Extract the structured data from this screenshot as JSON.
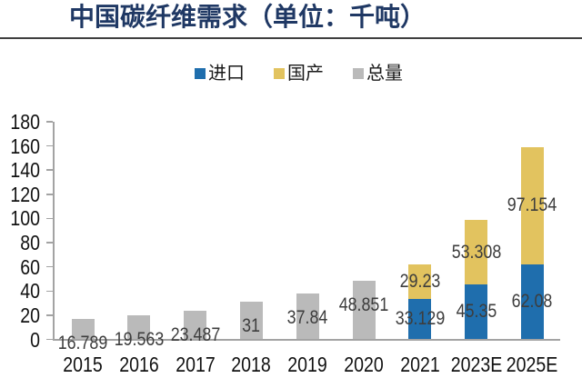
{
  "chart_data": {
    "type": "bar",
    "stacked": true,
    "title": "中国碳纤维需求（单位：千吨）",
    "categories": [
      "2015",
      "2016",
      "2017",
      "2018",
      "2019",
      "2020",
      "2021",
      "2023E",
      "2025E"
    ],
    "series": [
      {
        "name": "进口",
        "color": "#1f6ead",
        "values": [
          null,
          null,
          null,
          null,
          null,
          null,
          33.129,
          45.35,
          62.08
        ]
      },
      {
        "name": "国产",
        "color": "#e2c35f",
        "values": [
          null,
          null,
          null,
          null,
          null,
          null,
          29.23,
          53.308,
          97.154
        ]
      },
      {
        "name": "总量",
        "color": "#bababa",
        "values": [
          16.789,
          19.563,
          23.487,
          31,
          37.84,
          48.851,
          null,
          null,
          null
        ]
      }
    ],
    "data_labels": {
      "2015": "16.789",
      "2016": "19.563",
      "2017": "23.487",
      "2018": "31",
      "2019": "37.84",
      "2020": "48.851",
      "2021_import": "33.129",
      "2021_domestic": "29.23",
      "2023E_import": "45.35",
      "2023E_domestic": "53.308",
      "2025E_import": "62.08",
      "2025E_domestic": "97.154"
    },
    "ylim": [
      0,
      180
    ],
    "ytick_step": 20,
    "yticks": [
      "0",
      "20",
      "40",
      "60",
      "80",
      "100",
      "120",
      "140",
      "160",
      "180"
    ],
    "legend_position": "top",
    "gridlines": false,
    "colors": {
      "title": "#1f3864",
      "axis_line": "#a3a3a3",
      "data_label_text": "#3d3d3d",
      "axis_text": "#111111",
      "title_rule": "#3f3f3f"
    }
  }
}
